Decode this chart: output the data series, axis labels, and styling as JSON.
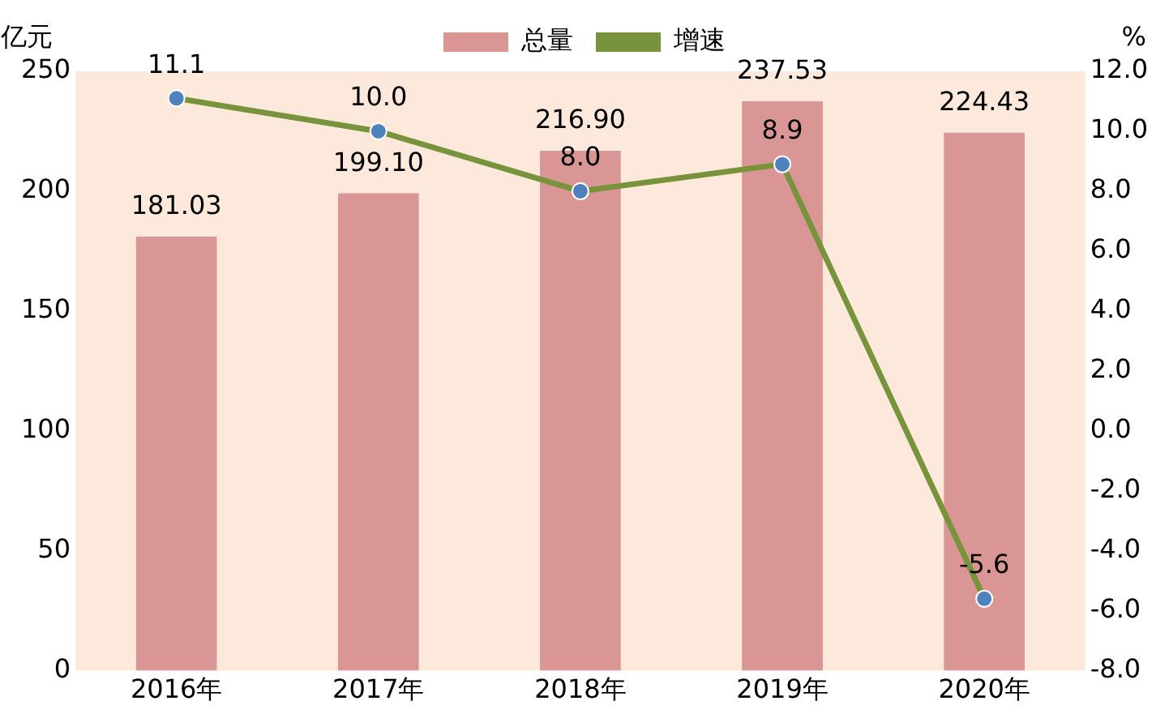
{
  "chart_data": {
    "type": "bar",
    "categories": [
      "2016年",
      "2017年",
      "2018年",
      "2019年",
      "2020年"
    ],
    "ylabel": "亿元",
    "y2label": "%",
    "series": [
      {
        "name": "总量",
        "color": "#d99694",
        "values": [
          181.03,
          199.1,
          216.9,
          237.53,
          224.43
        ],
        "value_labels": [
          "181.03",
          "199.10",
          "216.90",
          "237.53",
          "224.43"
        ]
      },
      {
        "name": "增速",
        "type": "line",
        "axis": "y2",
        "color": "#77933c",
        "marker": "circle",
        "values": [
          11.1,
          10.0,
          8.0,
          8.9,
          -5.6
        ],
        "value_labels": [
          "11.1",
          "10.0",
          "8.0",
          "8.9",
          "-5.6"
        ]
      }
    ],
    "ylim": [
      0,
      250
    ],
    "yticks": [
      0,
      50,
      100,
      150,
      200,
      250
    ],
    "y2lim": [
      -8,
      12
    ],
    "y2ticks": [
      {
        "value": -8,
        "label": "-8.0"
      },
      {
        "value": -6,
        "label": "-6.0"
      },
      {
        "value": -4,
        "label": "-4.0"
      },
      {
        "value": -2,
        "label": "-2.0"
      },
      {
        "value": 0,
        "label": "0.0"
      },
      {
        "value": 2,
        "label": "2.0"
      },
      {
        "value": 4,
        "label": "4.0"
      },
      {
        "value": 6,
        "label": "6.0"
      },
      {
        "value": 8,
        "label": "8.0"
      },
      {
        "value": 10,
        "label": "10.0"
      },
      {
        "value": 12,
        "label": "12.0"
      }
    ],
    "grid": false,
    "legend": "top"
  }
}
